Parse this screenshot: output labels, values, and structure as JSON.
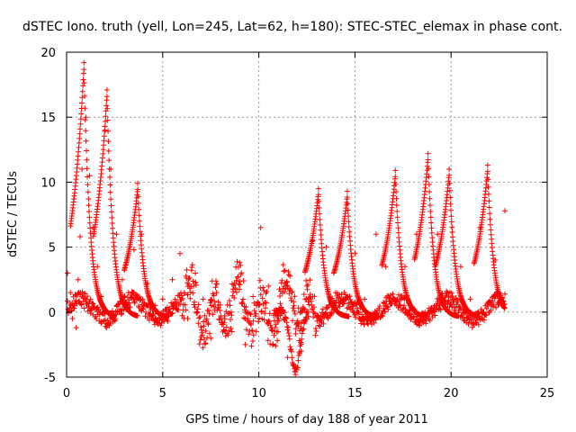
{
  "chart_data": {
    "type": "scatter",
    "title": "dSTEC Iono. truth (yell, Lon=245, Lat=62, h=180): STEC-STEC_elemax in phase cont.",
    "xlabel": "GPS time / hours of day 188 of year 2011",
    "ylabel": "dSTEC  / TECUs",
    "xlim": [
      0,
      25
    ],
    "ylim": [
      -5,
      20
    ],
    "x_ticks": [
      0,
      5,
      10,
      15,
      20,
      25
    ],
    "y_ticks": [
      -5,
      0,
      5,
      10,
      15,
      20
    ],
    "grid": true,
    "marker": "+",
    "marker_color": "#ff0000",
    "series": [
      {
        "peaks": [
          {
            "t": 0.9,
            "a": 19.2
          },
          {
            "t": 2.1,
            "a": 17.1
          },
          {
            "t": 3.7,
            "a": 9.9
          },
          {
            "t": 13.1,
            "a": 9.5
          },
          {
            "t": 14.6,
            "a": 9.3
          },
          {
            "t": 17.1,
            "a": 10.9
          },
          {
            "t": 18.8,
            "a": 12.2
          },
          {
            "t": 19.9,
            "a": 11.0
          },
          {
            "t": 21.9,
            "a": 11.3
          }
        ],
        "points": [
          [
            0.05,
            3.0
          ],
          [
            0.2,
            1.5
          ],
          [
            0.3,
            -0.5
          ],
          [
            0.4,
            0.3
          ],
          [
            0.5,
            -1.2
          ],
          [
            0.6,
            2.5
          ],
          [
            0.7,
            5.8
          ],
          [
            0.8,
            11.0
          ],
          [
            0.9,
            19.2
          ],
          [
            1.0,
            15.0
          ],
          [
            1.2,
            10.5
          ],
          [
            1.4,
            6.5
          ],
          [
            1.6,
            3.5
          ],
          [
            1.8,
            1.2
          ],
          [
            2.0,
            14.0
          ],
          [
            2.1,
            17.1
          ],
          [
            2.3,
            11.0
          ],
          [
            2.6,
            6.0
          ],
          [
            2.9,
            2.5
          ],
          [
            3.2,
            0.6
          ],
          [
            3.5,
            4.8
          ],
          [
            3.7,
            9.9
          ],
          [
            3.9,
            6.0
          ],
          [
            4.2,
            2.2
          ],
          [
            4.6,
            0.5
          ],
          [
            5.0,
            1.0
          ],
          [
            5.5,
            2.5
          ],
          [
            5.9,
            4.5
          ],
          [
            6.3,
            -0.5
          ],
          [
            6.7,
            3.0
          ],
          [
            7.1,
            1.0
          ],
          [
            7.5,
            -2.0
          ],
          [
            7.8,
            1.5
          ],
          [
            8.2,
            -0.8
          ],
          [
            8.6,
            -1.5
          ],
          [
            9.0,
            3.8
          ],
          [
            9.3,
            -2.5
          ],
          [
            9.7,
            1.2
          ],
          [
            10.1,
            6.5
          ],
          [
            10.5,
            2.0
          ],
          [
            11.0,
            -1.5
          ],
          [
            11.5,
            -3.5
          ],
          [
            11.9,
            -4.6
          ],
          [
            12.2,
            -3.0
          ],
          [
            12.5,
            2.0
          ],
          [
            12.8,
            5.5
          ],
          [
            13.1,
            9.5
          ],
          [
            13.5,
            5.0
          ],
          [
            14.0,
            1.5
          ],
          [
            14.6,
            9.3
          ],
          [
            15.0,
            4.5
          ],
          [
            15.5,
            1.0
          ],
          [
            16.1,
            6.0
          ],
          [
            16.6,
            3.5
          ],
          [
            17.1,
            10.9
          ],
          [
            17.6,
            3.5
          ],
          [
            18.2,
            6.0
          ],
          [
            18.8,
            12.2
          ],
          [
            19.3,
            6.0
          ],
          [
            19.9,
            11.0
          ],
          [
            20.5,
            3.5
          ],
          [
            21.0,
            1.0
          ],
          [
            21.5,
            6.5
          ],
          [
            21.9,
            11.3
          ],
          [
            22.3,
            4.0
          ],
          [
            22.8,
            7.8
          ]
        ]
      }
    ]
  }
}
